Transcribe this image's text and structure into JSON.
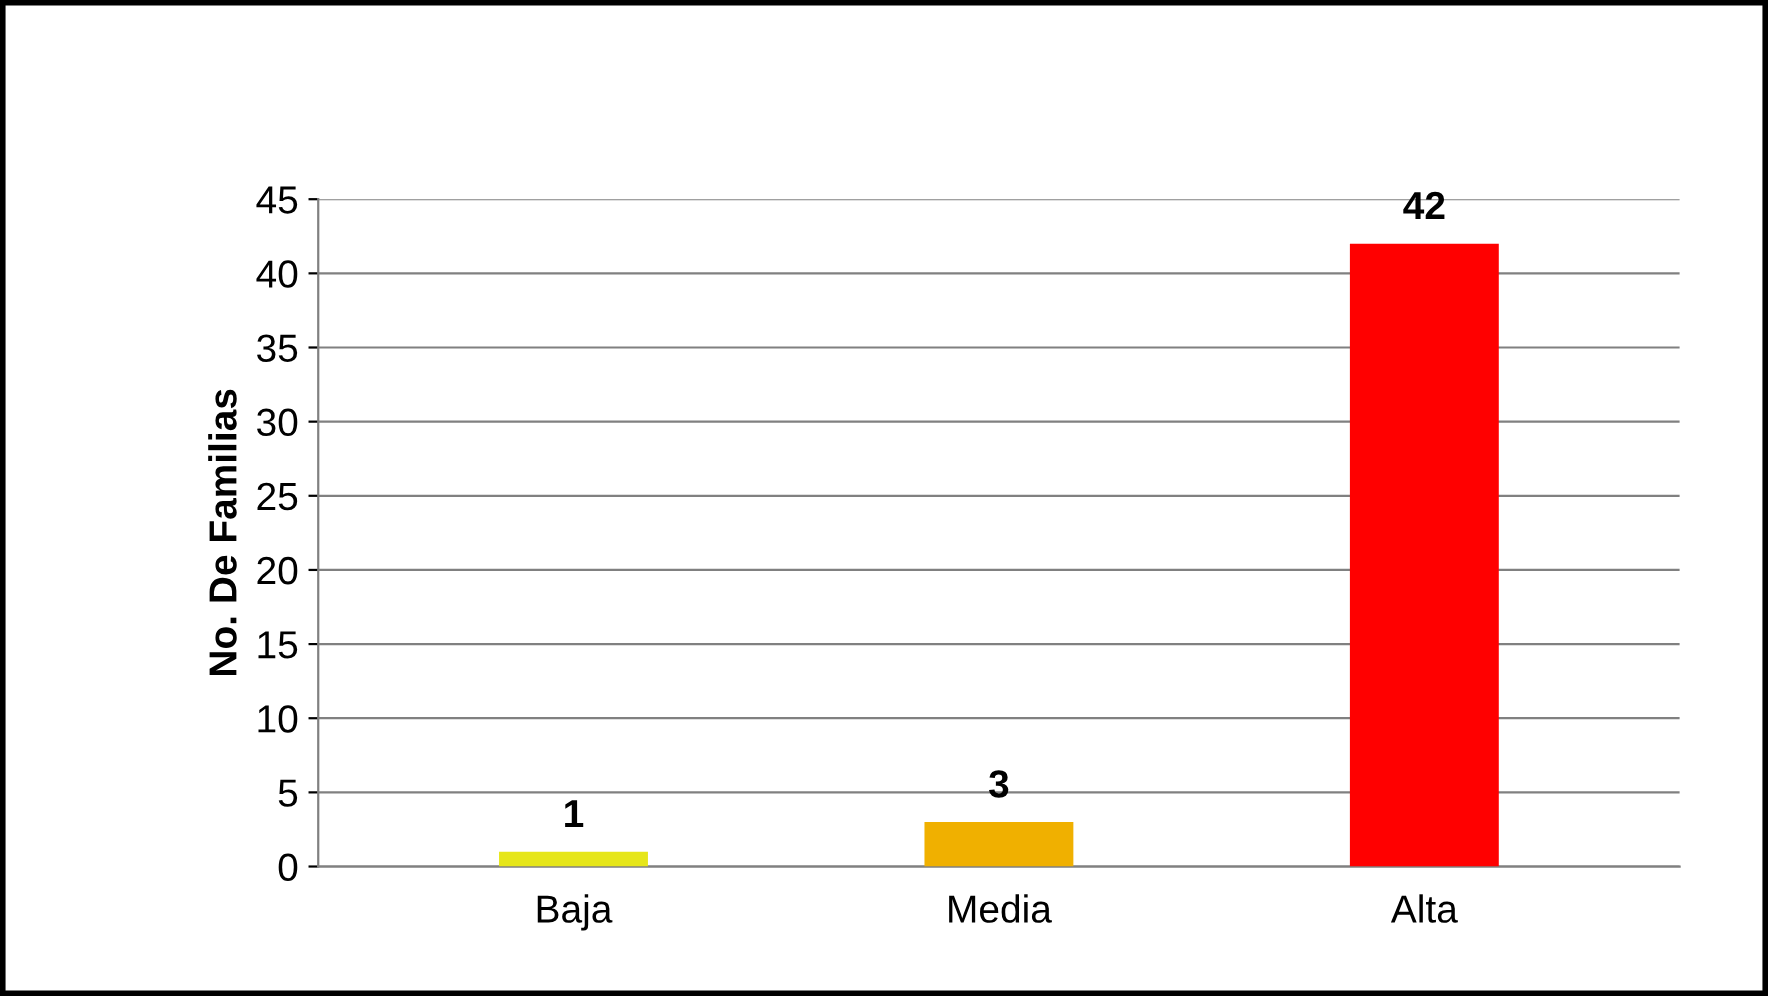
{
  "chart_data": {
    "type": "bar",
    "ylabel": "No. De Familias",
    "categories": [
      "Baja",
      "Media",
      "Alta"
    ],
    "values": [
      1,
      3,
      42
    ],
    "colors": [
      "#e6e619",
      "#f0b000",
      "#ff0000"
    ],
    "ylim": [
      0,
      45
    ],
    "yticks": [
      0,
      5,
      10,
      15,
      20,
      25,
      30,
      35,
      40,
      45
    ],
    "grid": "y",
    "data_labels": true,
    "legend": false
  }
}
